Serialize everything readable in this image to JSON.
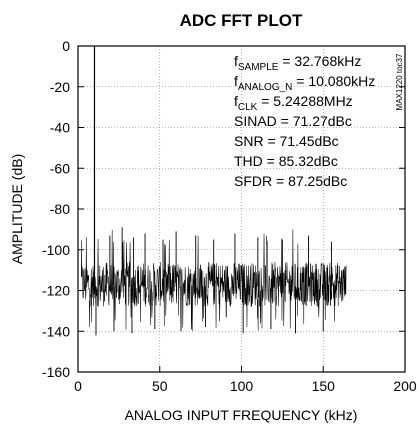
{
  "chart_data": {
    "type": "line",
    "title": "ADC FFT PLOT",
    "xlabel": "ANALOG INPUT FREQUENCY (kHz)",
    "ylabel": "AMPLITUDE (dB)",
    "xlim": [
      0,
      200
    ],
    "ylim": [
      -160,
      0
    ],
    "xticks": [
      "0",
      "50",
      "100",
      "150",
      "200"
    ],
    "yticks": [
      "0",
      "-20",
      "-40",
      "-60",
      "-80",
      "-100",
      "-120",
      "-140",
      "-160"
    ],
    "grid": true,
    "figure_id": "MAX1220 toc37",
    "annotations": [
      {
        "main": "f",
        "sub": "SAMPLE",
        "rest": " = 32.768kHz"
      },
      {
        "main": "f",
        "sub": "ANALOG_N",
        "rest": " = 10.080kHz"
      },
      {
        "main": "f",
        "sub": "CLK",
        "rest": " = 5.24288MHz"
      },
      {
        "main": "SINAD = 71.27dBc",
        "sub": "",
        "rest": ""
      },
      {
        "main": "SNR = 71.45dBc",
        "sub": "",
        "rest": ""
      },
      {
        "main": "THD = 85.32dBc",
        "sub": "",
        "rest": ""
      },
      {
        "main": "SFDR = 87.25dBc",
        "sub": "",
        "rest": ""
      }
    ],
    "fundamental": {
      "x": 10.08,
      "y": 0
    },
    "noise_floor": {
      "x_range": [
        2,
        164
      ],
      "y_band": [
        -128,
        -106
      ],
      "typical_min": -140,
      "typical_max": -90
    },
    "spurs": [
      {
        "x": 19.5,
        "y": -93
      },
      {
        "x": 27,
        "y": -89
      },
      {
        "x": 34,
        "y": -94
      },
      {
        "x": 41,
        "y": -92
      },
      {
        "x": 52,
        "y": -95
      },
      {
        "x": 60,
        "y": -91
      },
      {
        "x": 72,
        "y": -93
      },
      {
        "x": 83,
        "y": -95
      },
      {
        "x": 96,
        "y": -92
      },
      {
        "x": 110,
        "y": -94
      },
      {
        "x": 125,
        "y": -95
      },
      {
        "x": 141,
        "y": -93
      },
      {
        "x": 155,
        "y": -96
      }
    ],
    "dips": [
      {
        "x": 11,
        "y": -142
      },
      {
        "x": 22,
        "y": -140
      },
      {
        "x": 33,
        "y": -141
      },
      {
        "x": 47,
        "y": -139
      },
      {
        "x": 63,
        "y": -140
      },
      {
        "x": 78,
        "y": -138
      },
      {
        "x": 101,
        "y": -141
      },
      {
        "x": 118,
        "y": -139
      },
      {
        "x": 133,
        "y": -141
      },
      {
        "x": 150,
        "y": -140
      }
    ]
  }
}
